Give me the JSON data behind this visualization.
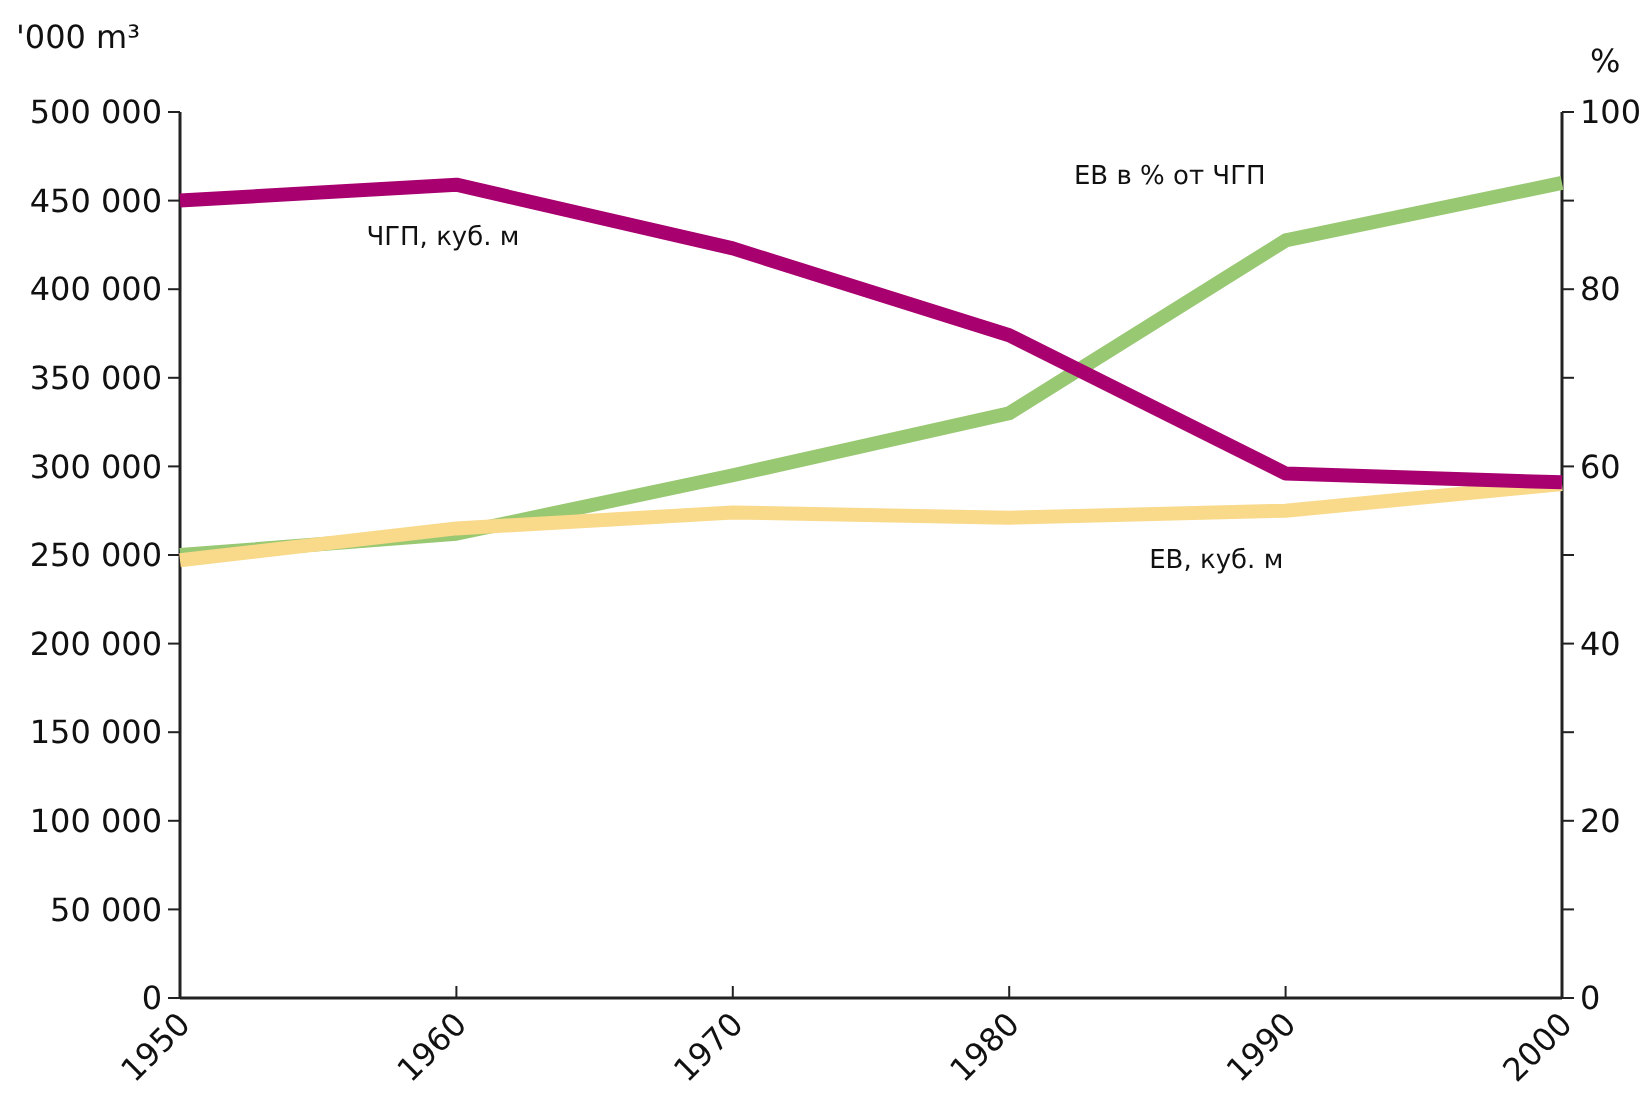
{
  "chart_data": {
    "type": "line",
    "ylabel": "'000 m³",
    "y2label": "%",
    "x": [
      1950,
      1960,
      1970,
      1980,
      1990,
      2000
    ],
    "xlim": [
      1950,
      2000
    ],
    "xticks": [
      1950,
      1960,
      1970,
      1980,
      1990,
      2000
    ],
    "ylim": [
      0,
      500000
    ],
    "yticks": [
      {
        "value": 0,
        "label": "0"
      },
      {
        "value": 50000,
        "label": "50 000"
      },
      {
        "value": 100000,
        "label": "100 000"
      },
      {
        "value": 150000,
        "label": "150 000"
      },
      {
        "value": 200000,
        "label": "200 000"
      },
      {
        "value": 250000,
        "label": "250 000"
      },
      {
        "value": 300000,
        "label": "300 000"
      },
      {
        "value": 350000,
        "label": "350 000"
      },
      {
        "value": 400000,
        "label": "400 000"
      },
      {
        "value": 450000,
        "label": "450 000"
      },
      {
        "value": 500000,
        "label": "500 000"
      }
    ],
    "y2lim": [
      0,
      100
    ],
    "y2ticks": [
      0,
      {
        "value": 10,
        "label": null
      },
      20,
      {
        "value": 30,
        "label": null
      },
      40,
      {
        "value": 50,
        "label": null
      },
      60,
      {
        "value": 70,
        "label": null
      },
      80,
      {
        "value": 90,
        "label": null
      },
      100
    ],
    "grid": false,
    "marker": "none",
    "line_style": "solid",
    "series": [
      {
        "name": "ЕВ в % от ЧГП",
        "color": "#99c872",
        "axis": "y2",
        "values": [
          50,
          52.4,
          59,
          66,
          85.5,
          92
        ]
      },
      {
        "name": "ЕВ, куб. м",
        "color": "#f9d98a",
        "values": [
          247000,
          265000,
          274000,
          271000,
          275000,
          290000
        ]
      },
      {
        "name": "ЧГП, куб. м",
        "color": "#a8006e",
        "values": [
          450000,
          459000,
          423000,
          374000,
          296000,
          291000
        ]
      }
    ]
  }
}
